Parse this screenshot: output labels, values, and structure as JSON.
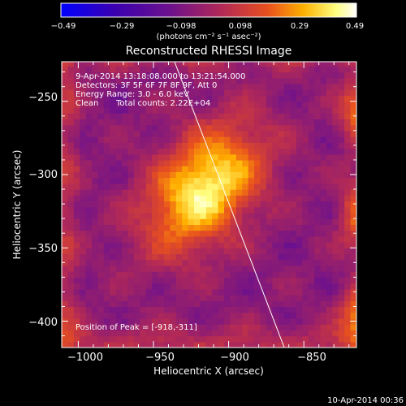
{
  "chart_data": {
    "type": "heatmap",
    "title": "Reconstructed RHESSI Image",
    "xlabel": "Heliocentric X (arcsec)",
    "ylabel": "Heliocentric Y (arcsec)",
    "xlim": [
      -1011,
      -815
    ],
    "ylim": [
      -418,
      -223
    ],
    "x_ticks": [
      -1000,
      -950,
      -900,
      -850
    ],
    "y_ticks": [
      -250,
      -300,
      -350,
      -400
    ],
    "x_tick_labels": [
      "−1000",
      "−950",
      "−900",
      "−850"
    ],
    "y_tick_labels": [
      "−250",
      "−300",
      "−350",
      "−400"
    ],
    "colorbar": {
      "min": -0.49,
      "max": 0.49,
      "tick_values": [
        -0.49,
        -0.29,
        -0.098,
        0.098,
        0.29,
        0.49
      ],
      "tick_labels": [
        "−0.49",
        "−0.29",
        "−0.098",
        "0.098",
        "0.29",
        "0.49"
      ],
      "units": "(photons cm⁻² s⁻¹ asec⁻²)",
      "colormap": [
        "#0000ff",
        "#3a00b0",
        "#6a108f",
        "#b42a55",
        "#e8501e",
        "#ffb000",
        "#ffff80",
        "#ffffff"
      ]
    },
    "annotations": {
      "time_range": "9-Apr-2014 13:18:08.000 to 13:21:54.000",
      "detectors": "Detectors: 3F 5F 6F 7F 8F 9F, Att 0",
      "energy_range": "Energy Range: 3.0 - 6.0 keV",
      "algorithm": "Clean",
      "total_counts": "Total counts: 2.22E+04",
      "peak": "Position of Peak = [-918,-311]"
    },
    "peak": {
      "x": -918,
      "y": -311,
      "value": 0.49
    },
    "limb_line": [
      {
        "x": -936,
        "y": -223
      },
      {
        "x": -863,
        "y": -418
      }
    ],
    "footer_timestamp": "10-Apr-2014 00:36"
  }
}
